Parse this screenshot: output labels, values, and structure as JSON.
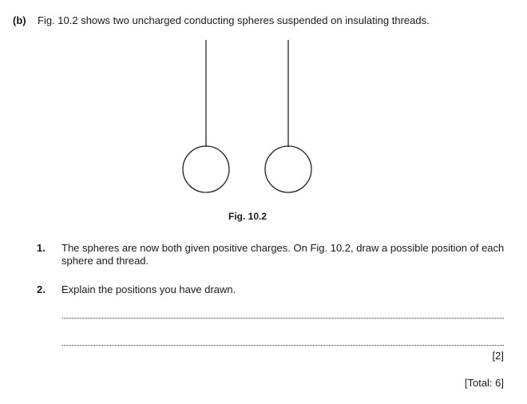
{
  "part": {
    "label": "(b)",
    "intro": "Fig. 10.2 shows two uncharged conducting spheres suspended on insulating threads."
  },
  "figure": {
    "caption": "Fig. 10.2"
  },
  "questions": [
    {
      "number": "1.",
      "text": "The spheres are now both given positive charges. On Fig. 10.2, draw a possible position of each sphere and thread."
    },
    {
      "number": "2.",
      "text": "Explain the positions you have drawn."
    }
  ],
  "marks": "[2]",
  "total": "[Total: 6]"
}
